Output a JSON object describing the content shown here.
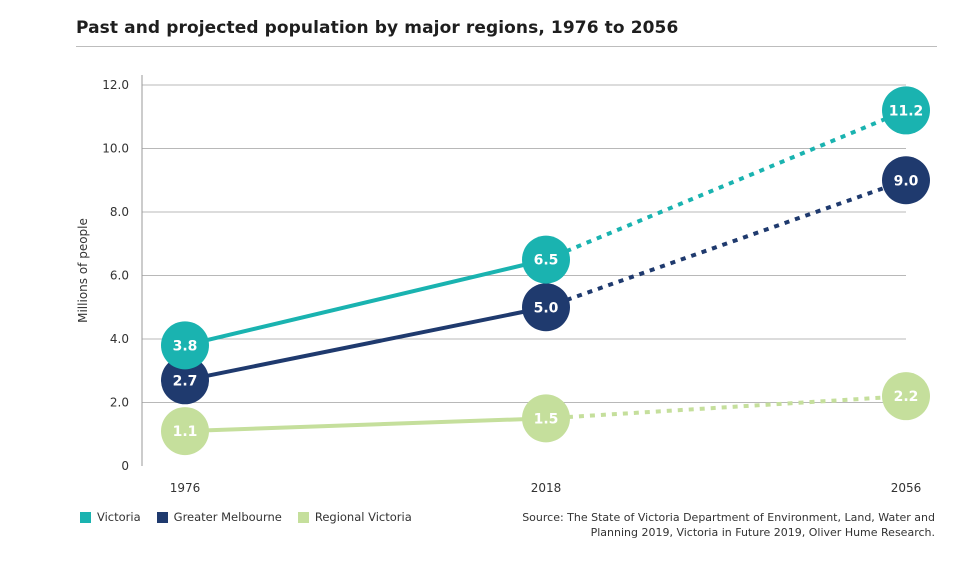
{
  "title": "Past and projected population by major regions, 1976 to 2056",
  "source": "Source: The State of Victoria Department of Environment, Land, Water and Planning 2019, Victoria in Future 2019, Oliver Hume Research.",
  "colors": {
    "Victoria": "#1ab3b0",
    "Greater Melbourne": "#1f3a6e",
    "Regional Victoria": "#c5df9c"
  },
  "chart_data": {
    "type": "line",
    "title": "Past and projected population by major regions, 1976 to 2056",
    "xlabel": "",
    "ylabel": "Millions of people",
    "x": [
      1976,
      2018,
      2056
    ],
    "x_tick_labels": [
      "1976",
      "2018",
      "2056"
    ],
    "ylim": [
      0,
      12
    ],
    "y_ticks": [
      0,
      2,
      4,
      6,
      8,
      10,
      12
    ],
    "y_tick_labels": [
      "0",
      "2.0",
      "4.0",
      "6.0",
      "8.0",
      "10.0",
      "12.0"
    ],
    "grid": true,
    "legend_placement": "bottom-left",
    "projection_style": "dotted from 2018 to 2056",
    "series": [
      {
        "name": "Victoria",
        "values": [
          3.8,
          6.5,
          11.2
        ],
        "labels": [
          "3.8",
          "6.5",
          "11.2"
        ]
      },
      {
        "name": "Greater Melbourne",
        "values": [
          2.7,
          5.0,
          9.0
        ],
        "labels": [
          "2.7",
          "5.0",
          "9.0"
        ]
      },
      {
        "name": "Regional Victoria",
        "values": [
          1.1,
          1.5,
          2.2
        ],
        "labels": [
          "1.1",
          "1.5",
          "2.2"
        ]
      }
    ]
  }
}
